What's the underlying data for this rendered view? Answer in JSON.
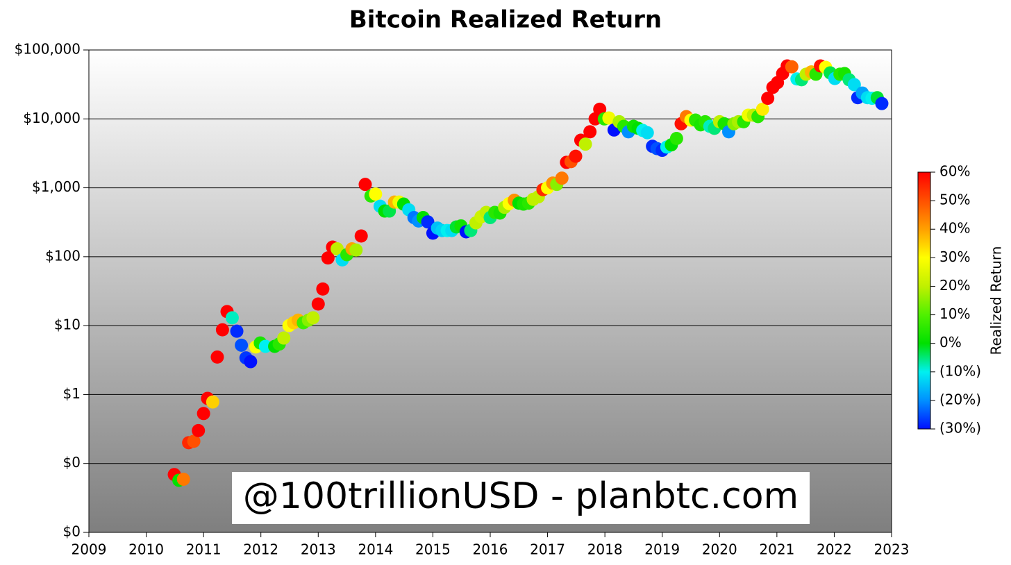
{
  "chart_data": {
    "type": "scatter",
    "title": "Bitcoin Realized Return",
    "log_y": true,
    "grid": true,
    "xlim": [
      2009,
      2023
    ],
    "xticks": [
      2009,
      2010,
      2011,
      2012,
      2013,
      2014,
      2015,
      2016,
      2017,
      2018,
      2019,
      2020,
      2021,
      2022,
      2023
    ],
    "ylim": [
      0.01,
      100000
    ],
    "yticks": [
      {
        "value": 0.01,
        "label": "$0"
      },
      {
        "value": 0.1,
        "label": "$0"
      },
      {
        "value": 1,
        "label": "$1"
      },
      {
        "value": 10,
        "label": "$10"
      },
      {
        "value": 100,
        "label": "$100"
      },
      {
        "value": 1000,
        "label": "$1,000"
      },
      {
        "value": 10000,
        "label": "$10,000"
      },
      {
        "value": 100000,
        "label": "$100,000"
      }
    ],
    "annotation": "@100trillionUSD  -  planbtc.com",
    "colorbar": {
      "label": "Realized Return",
      "clim": [
        -30,
        60
      ],
      "colors": [
        "#0010ff",
        "#0090ff",
        "#00f0f0",
        "#00e000",
        "#50f000",
        "#c0f000",
        "#ffff00",
        "#ffa000",
        "#ff5000",
        "#ff0000"
      ],
      "negative_label_color": "#cc0000",
      "ticks": [
        {
          "value": 60,
          "label": "60%"
        },
        {
          "value": 50,
          "label": "50%"
        },
        {
          "value": 40,
          "label": "40%"
        },
        {
          "value": 30,
          "label": "30%"
        },
        {
          "value": 20,
          "label": "20%"
        },
        {
          "value": 10,
          "label": "10%"
        },
        {
          "value": 0,
          "label": "0%"
        },
        {
          "value": -10,
          "label": "(10%)"
        },
        {
          "value": -20,
          "label": "(20%)"
        },
        {
          "value": -30,
          "label": "(30%)"
        }
      ]
    },
    "x": [
      2010.49,
      2010.57,
      2010.65,
      2010.74,
      2010.83,
      2010.91,
      2011.0,
      2011.07,
      2011.16,
      2011.24,
      2011.33,
      2011.41,
      2011.5,
      2011.58,
      2011.66,
      2011.74,
      2011.82,
      2011.91,
      2011.99,
      2012.08,
      2012.24,
      2012.32,
      2012.4,
      2012.49,
      2012.57,
      2012.65,
      2012.74,
      2012.83,
      2012.91,
      2013.0,
      2013.08,
      2013.17,
      2013.25,
      2013.33,
      2013.42,
      2013.5,
      2013.59,
      2013.66,
      2013.75,
      2013.82,
      2013.92,
      2014.0,
      2014.08,
      2014.16,
      2014.24,
      2014.33,
      2014.41,
      2014.49,
      2014.58,
      2014.67,
      2014.75,
      2014.83,
      2014.91,
      2015.0,
      2015.08,
      2015.16,
      2015.25,
      2015.33,
      2015.41,
      2015.49,
      2015.58,
      2015.66,
      2015.75,
      2015.84,
      2015.93,
      2016.0,
      2016.08,
      2016.17,
      2016.25,
      2016.33,
      2016.42,
      2016.5,
      2016.58,
      2016.67,
      2016.75,
      2016.84,
      2016.92,
      2017.0,
      2017.09,
      2017.16,
      2017.25,
      2017.33,
      2017.41,
      2017.49,
      2017.58,
      2017.66,
      2017.74,
      2017.83,
      2017.91,
      2017.99,
      2018.07,
      2018.16,
      2018.25,
      2018.33,
      2018.41,
      2018.5,
      2018.58,
      2018.66,
      2018.74,
      2018.83,
      2018.91,
      2019.0,
      2019.08,
      2019.16,
      2019.25,
      2019.33,
      2019.42,
      2019.5,
      2019.58,
      2019.67,
      2019.75,
      2019.83,
      2019.91,
      2020.0,
      2020.08,
      2020.16,
      2020.25,
      2020.33,
      2020.42,
      2020.5,
      2020.59,
      2020.67,
      2020.75,
      2020.84,
      2020.93,
      2021.01,
      2021.1,
      2021.18,
      2021.26,
      2021.35,
      2021.43,
      2021.51,
      2021.6,
      2021.68,
      2021.76,
      2021.85,
      2021.93,
      2022.01,
      2022.1,
      2022.18,
      2022.26,
      2022.35,
      2022.41,
      2022.49,
      2022.58,
      2022.66,
      2022.75,
      2022.83
    ],
    "values": [
      0.069,
      0.057,
      0.059,
      0.2,
      0.21,
      0.3,
      0.53,
      0.88,
      0.78,
      3.5,
      8.7,
      16,
      13,
      8.3,
      5.2,
      3.4,
      3.0,
      4.9,
      5.6,
      5.0,
      5.0,
      5.4,
      6.6,
      10,
      11,
      12,
      11,
      12,
      13,
      20.6,
      34,
      96,
      138,
      130,
      90,
      107,
      130,
      125,
      200,
      1120,
      760,
      810,
      540,
      460,
      460,
      620,
      620,
      580,
      480,
      370,
      330,
      370,
      320,
      220,
      260,
      240,
      240,
      240,
      270,
      280,
      230,
      240,
      310,
      380,
      440,
      370,
      440,
      430,
      520,
      590,
      660,
      600,
      580,
      600,
      680,
      740,
      940,
      1000,
      1170,
      1120,
      1380,
      2340,
      2400,
      2870,
      4900,
      4300,
      6500,
      10000,
      13800,
      10000,
      10300,
      6900,
      9100,
      7800,
      6500,
      7800,
      7300,
      6800,
      6300,
      4000,
      3700,
      3500,
      3900,
      4200,
      5200,
      8500,
      10800,
      9600,
      9600,
      8200,
      9100,
      7800,
      7300,
      9100,
      8500,
      6500,
      8500,
      9100,
      9100,
      11300,
      11300,
      10800,
      13800,
      19900,
      28700,
      33600,
      45500,
      58700,
      57000,
      38000,
      37000,
      44500,
      48000,
      44500,
      58700,
      56000,
      46500,
      38500,
      44500,
      45500,
      37000,
      31400,
      20300,
      23700,
      20300,
      19900,
      20300,
      16700
    ],
    "returns": [
      60,
      0,
      45,
      55,
      50,
      60,
      60,
      60,
      35,
      60,
      60,
      60,
      -8,
      -28,
      -25,
      -27,
      -30,
      30,
      3,
      -10,
      0,
      5,
      20,
      30,
      35,
      38,
      8,
      15,
      20,
      60,
      60,
      60,
      60,
      20,
      -12,
      5,
      40,
      18,
      60,
      60,
      5,
      30,
      -12,
      0,
      -3,
      38,
      28,
      0,
      -12,
      -22,
      -20,
      0,
      -28,
      -30,
      -15,
      -13,
      -10,
      -12,
      -2,
      2,
      -30,
      -5,
      20,
      22,
      20,
      -5,
      5,
      3,
      18,
      30,
      42,
      0,
      3,
      5,
      20,
      20,
      55,
      30,
      42,
      15,
      45,
      60,
      50,
      58,
      60,
      20,
      60,
      60,
      60,
      5,
      28,
      -30,
      18,
      5,
      -20,
      2,
      0,
      -10,
      -12,
      -28,
      -25,
      -28,
      -10,
      0,
      5,
      58,
      45,
      30,
      5,
      3,
      5,
      -8,
      -5,
      20,
      3,
      -20,
      15,
      18,
      5,
      28,
      20,
      5,
      32,
      60,
      60,
      60,
      60,
      60,
      48,
      -10,
      -5,
      20,
      38,
      5,
      58,
      30,
      -3,
      -12,
      5,
      3,
      -5,
      -12,
      -28,
      -18,
      -12,
      -10,
      -2,
      -28
    ]
  }
}
